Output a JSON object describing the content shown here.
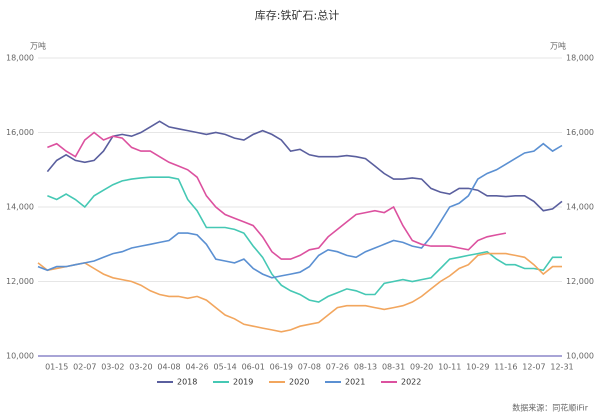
{
  "chart_data": {
    "type": "line",
    "title": "库存:铁矿石:总计",
    "ylabel": "万吨",
    "y2label": "万吨",
    "source": "数据来源：同花顺iFir",
    "categories": [
      null,
      null,
      "01-15",
      null,
      null,
      "02-07",
      null,
      null,
      "03-02",
      null,
      null,
      "03-20",
      null,
      null,
      "04-08",
      null,
      null,
      "04-26",
      null,
      null,
      "05-14",
      null,
      null,
      "06-01",
      null,
      null,
      "06-19",
      null,
      null,
      "07-08",
      null,
      null,
      "07-26",
      null,
      null,
      "08-13",
      null,
      null,
      "08-31",
      null,
      null,
      "09-20",
      null,
      null,
      "10-11",
      null,
      null,
      "10-29",
      null,
      null,
      "11-16",
      null,
      null,
      "12-07",
      null,
      null,
      "12-31"
    ],
    "series": [
      {
        "name": "2018",
        "color": "#5a5f9e",
        "values": [
          null,
          14950,
          15250,
          15400,
          15250,
          15200,
          15250,
          15500,
          15900,
          15950,
          15900,
          16000,
          16150,
          16300,
          16150,
          16100,
          16050,
          16000,
          15950,
          16000,
          15950,
          15850,
          15800,
          15950,
          16050,
          15950,
          15800,
          15500,
          15550,
          15400,
          15350,
          15350,
          15350,
          15380,
          15350,
          15300,
          15100,
          14900,
          14750,
          14750,
          14780,
          14750,
          14500,
          14400,
          14350,
          14500,
          14500,
          14450,
          14300,
          14300,
          14280,
          14300,
          14300,
          14150,
          13900,
          13950,
          14150
        ]
      },
      {
        "name": "2019",
        "color": "#45c8b4",
        "values": [
          null,
          14300,
          14200,
          14350,
          14200,
          14000,
          14300,
          14450,
          14600,
          14700,
          14750,
          14780,
          14800,
          14800,
          14800,
          14750,
          14200,
          13900,
          13450,
          13450,
          13450,
          13400,
          13300,
          12950,
          12650,
          12200,
          11900,
          11750,
          11650,
          11500,
          11450,
          11600,
          11700,
          11800,
          11750,
          11650,
          11650,
          11950,
          12000,
          12050,
          12000,
          12050,
          12100,
          12350,
          12600,
          12650,
          12700,
          12750,
          12800,
          12600,
          12450,
          12450,
          12350,
          12350,
          12300,
          12650,
          12650
        ]
      },
      {
        "name": "2020",
        "color": "#f2a65e",
        "values": [
          12500,
          12300,
          12350,
          12400,
          12450,
          12500,
          12350,
          12200,
          12100,
          12050,
          12000,
          11900,
          11750,
          11650,
          11600,
          11600,
          11550,
          11600,
          11500,
          11300,
          11100,
          11000,
          10850,
          10800,
          10750,
          10700,
          10650,
          10700,
          10800,
          10850,
          10900,
          11100,
          11300,
          11350,
          11350,
          11350,
          11300,
          11250,
          11300,
          11350,
          11450,
          11600,
          11800,
          12000,
          12150,
          12350,
          12450,
          12700,
          12750,
          12750,
          12750,
          12700,
          12650,
          12450,
          12200,
          12400,
          12400
        ]
      },
      {
        "name": "2021",
        "color": "#5b90d2",
        "values": [
          12400,
          12300,
          12400,
          12400,
          12450,
          12500,
          12550,
          12650,
          12750,
          12800,
          12900,
          12950,
          13000,
          13050,
          13100,
          13300,
          13300,
          13250,
          13000,
          12600,
          12550,
          12500,
          12600,
          12350,
          12200,
          12100,
          12150,
          12200,
          12250,
          12400,
          12700,
          12850,
          12800,
          12700,
          12650,
          12800,
          12900,
          13000,
          13100,
          13050,
          12950,
          12900,
          13200,
          13600,
          14000,
          14100,
          14300,
          14750,
          14900,
          15000,
          15150,
          15300,
          15450,
          15500,
          15700,
          15500,
          15650
        ]
      },
      {
        "name": "2022",
        "color": "#dc519f",
        "values": [
          null,
          15600,
          15700,
          15500,
          15350,
          15800,
          16000,
          15800,
          15900,
          15850,
          15600,
          15500,
          15500,
          15350,
          15200,
          15100,
          15000,
          14800,
          14300,
          14000,
          13800,
          13700,
          13600,
          13500,
          13200,
          12800,
          12600,
          12600,
          12700,
          12850,
          12900,
          13200,
          13400,
          13600,
          13800,
          13850,
          13900,
          13850,
          14000,
          13500,
          13100,
          13000,
          12950,
          12950,
          12950,
          12900,
          12850,
          13100,
          13200,
          13250,
          13300,
          null,
          null,
          null,
          null,
          null,
          null
        ]
      }
    ],
    "ylim": [
      10000,
      18000
    ],
    "yticks": [
      {
        "value": 10000,
        "label": "10,000"
      },
      {
        "value": 12000,
        "label": "12,000"
      },
      {
        "value": 14000,
        "label": "14,000"
      },
      {
        "value": 16000,
        "label": "16,000"
      },
      {
        "value": 18000,
        "label": "18,000"
      }
    ],
    "y2lim": [
      10000,
      18000
    ],
    "y2ticks": [
      {
        "value": 10000,
        "label": "10,000"
      },
      {
        "value": 12000,
        "label": "12,000"
      },
      {
        "value": 14000,
        "label": "14,000"
      },
      {
        "value": 16000,
        "label": "16,000"
      },
      {
        "value": 18000,
        "label": "18,000"
      }
    ],
    "grid": true,
    "legend": "bottom"
  }
}
